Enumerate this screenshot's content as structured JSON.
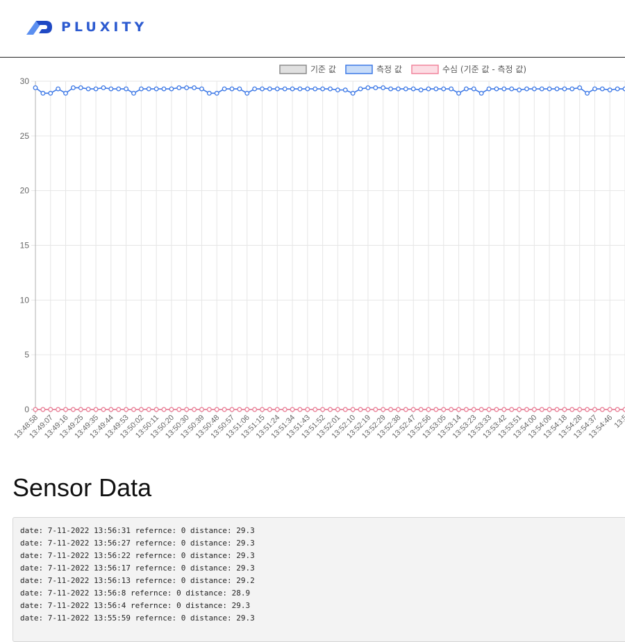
{
  "header": {
    "logo_text": "PLUXITY"
  },
  "chart_data": {
    "type": "line",
    "ylim": [
      0,
      30
    ],
    "yticks": [
      0,
      5,
      10,
      15,
      20,
      25,
      30
    ],
    "grid": true,
    "legend_position": "top",
    "legend": [
      {
        "label": "기준 값",
        "fill": "#e0e0e0",
        "stroke": "#8c8c8c"
      },
      {
        "label": "측정 값",
        "fill": "#c8dcf8",
        "stroke": "#3c78e6"
      },
      {
        "label": "수심 (기준 값 - 측정 값)",
        "fill": "#fcdde4",
        "stroke": "#f0849c"
      }
    ],
    "tick_labels": [
      "13:48:58",
      "13:49:07",
      "13:49:16",
      "13:49:25",
      "13:49:35",
      "13:49:44",
      "13:49:53",
      "13:50:02",
      "13:50:11",
      "13:50:20",
      "13:50:30",
      "13:50:39",
      "13:50:48",
      "13:50:57",
      "13:51:06",
      "13:51:15",
      "13:51:24",
      "13:51:34",
      "13:51:43",
      "13:51:52",
      "13:52:01",
      "13:52:10",
      "13:52:19",
      "13:52:29",
      "13:52:38",
      "13:52:47",
      "13:52:56",
      "13:53:05",
      "13:53:14",
      "13:53:23",
      "13:53:33",
      "13:53:42",
      "13:53:51",
      "13:54:00",
      "13:54:09",
      "13:54:18",
      "13:54:28",
      "13:54:37",
      "13:54:46",
      "13:5"
    ],
    "series": [
      {
        "name": "기준 값",
        "color": "#8c8c8c",
        "values": [
          0,
          0,
          0,
          0,
          0,
          0,
          0,
          0,
          0,
          0,
          0,
          0,
          0,
          0,
          0,
          0,
          0,
          0,
          0,
          0,
          0,
          0,
          0,
          0,
          0,
          0,
          0,
          0,
          0,
          0,
          0,
          0,
          0,
          0,
          0,
          0,
          0,
          0,
          0,
          0,
          0,
          0,
          0,
          0,
          0,
          0,
          0,
          0,
          0,
          0,
          0,
          0,
          0,
          0,
          0,
          0,
          0,
          0,
          0,
          0,
          0,
          0,
          0,
          0,
          0,
          0,
          0,
          0,
          0,
          0,
          0,
          0,
          0,
          0,
          0,
          0,
          0,
          0,
          0
        ]
      },
      {
        "name": "측정 값",
        "color": "#3c78e6",
        "values": [
          29.4,
          28.9,
          28.9,
          29.3,
          28.9,
          29.4,
          29.4,
          29.3,
          29.3,
          29.4,
          29.3,
          29.3,
          29.3,
          28.9,
          29.3,
          29.3,
          29.3,
          29.3,
          29.3,
          29.4,
          29.4,
          29.4,
          29.3,
          28.9,
          28.9,
          29.3,
          29.3,
          29.3,
          28.9,
          29.3,
          29.3,
          29.3,
          29.3,
          29.3,
          29.3,
          29.3,
          29.3,
          29.3,
          29.3,
          29.3,
          29.2,
          29.2,
          28.9,
          29.3,
          29.4,
          29.4,
          29.4,
          29.3,
          29.3,
          29.3,
          29.3,
          29.2,
          29.3,
          29.3,
          29.3,
          29.3,
          28.9,
          29.3,
          29.3,
          28.9,
          29.3,
          29.3,
          29.3,
          29.3,
          29.2,
          29.3,
          29.3,
          29.3,
          29.3,
          29.3,
          29.3,
          29.3,
          29.4,
          28.9,
          29.3,
          29.3,
          29.2,
          29.3,
          29.3
        ]
      },
      {
        "name": "수심 (기준 값 - 측정 값)",
        "color": "#f0849c",
        "values": [
          0,
          0,
          0,
          0,
          0,
          0,
          0,
          0,
          0,
          0,
          0,
          0,
          0,
          0,
          0,
          0,
          0,
          0,
          0,
          0,
          0,
          0,
          0,
          0,
          0,
          0,
          0,
          0,
          0,
          0,
          0,
          0,
          0,
          0,
          0,
          0,
          0,
          0,
          0,
          0,
          0,
          0,
          0,
          0,
          0,
          0,
          0,
          0,
          0,
          0,
          0,
          0,
          0,
          0,
          0,
          0,
          0,
          0,
          0,
          0,
          0,
          0,
          0,
          0,
          0,
          0,
          0,
          0,
          0,
          0,
          0,
          0,
          0,
          0,
          0,
          0,
          0,
          0,
          0
        ]
      }
    ]
  },
  "sensor": {
    "title": "Sensor Data",
    "lines": [
      "date: 7-11-2022 13:56:31 refernce: 0 distance: 29.3",
      "date: 7-11-2022 13:56:27 refernce: 0 distance: 29.3",
      "date: 7-11-2022 13:56:22 refernce: 0 distance: 29.3",
      "date: 7-11-2022 13:56:17 refernce: 0 distance: 29.3",
      "date: 7-11-2022 13:56:13 refernce: 0 distance: 29.2",
      "date: 7-11-2022 13:56:8 refernce: 0 distance: 28.9",
      "date: 7-11-2022 13:56:4 refernce: 0 distance: 29.3",
      "date: 7-11-2022 13:55:59 refernce: 0 distance: 29.3"
    ]
  }
}
